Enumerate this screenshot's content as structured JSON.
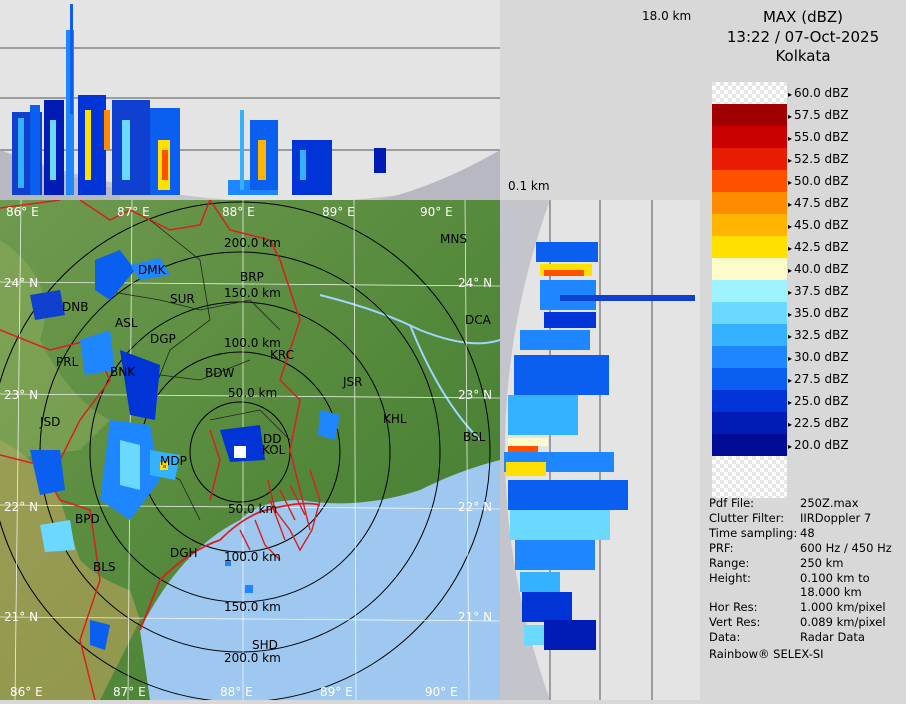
{
  "header": {
    "product": "MAX (dBZ)",
    "datetime": "13:22 / 07-Oct-2025",
    "station": "Kolkata"
  },
  "height_labels": {
    "top": "18.0 km",
    "bottom": "0.1 km"
  },
  "legend": [
    {
      "label": "60.0 dBZ",
      "color": "checker"
    },
    {
      "label": "57.5 dBZ",
      "color": "#a00000"
    },
    {
      "label": "55.0 dBZ",
      "color": "#c80000"
    },
    {
      "label": "52.5 dBZ",
      "color": "#e81c00"
    },
    {
      "label": "50.0 dBZ",
      "color": "#ff5000"
    },
    {
      "label": "47.5 dBZ",
      "color": "#ff8c00"
    },
    {
      "label": "45.0 dBZ",
      "color": "#ffb400"
    },
    {
      "label": "42.5 dBZ",
      "color": "#ffe000"
    },
    {
      "label": "40.0 dBZ",
      "color": "#fffccc"
    },
    {
      "label": "37.5 dBZ",
      "color": "#9ff2ff"
    },
    {
      "label": "35.0 dBZ",
      "color": "#6ad8ff"
    },
    {
      "label": "32.5 dBZ",
      "color": "#34b2ff"
    },
    {
      "label": "30.0 dBZ",
      "color": "#1e86ff"
    },
    {
      "label": "27.5 dBZ",
      "color": "#0a5ef0"
    },
    {
      "label": "25.0 dBZ",
      "color": "#0034d6"
    },
    {
      "label": "22.5 dBZ",
      "color": "#001cb4"
    },
    {
      "label": "20.0 dBZ",
      "color": "#000c94"
    }
  ],
  "info": [
    {
      "key": "Pdf File:",
      "value": "250Z.max"
    },
    {
      "key": "Clutter Filter:",
      "value": "IIRDoppler 7"
    },
    {
      "key": "Time sampling:",
      "value": "48"
    },
    {
      "key": "PRF:",
      "value": "600 Hz / 450 Hz"
    },
    {
      "key": "Range:",
      "value": "250 km"
    },
    {
      "key": "Height:",
      "value": "0.100 km to\n18.000 km"
    },
    {
      "key": "Hor Res:",
      "value": "1.000 km/pixel"
    },
    {
      "key": "Vert Res:",
      "value": "0.089 km/pixel"
    },
    {
      "key": "Data:",
      "value": "Radar Data"
    }
  ],
  "footer": "Rainbow® SELEX-SI",
  "map": {
    "lon_labels_top": [
      "86° E",
      "87° E",
      "88° E",
      "89° E",
      "90° E"
    ],
    "lon_labels_bottom": [
      "86° E",
      "87° E",
      "88° E",
      "89° E",
      "90° E"
    ],
    "lat_labels_left": [
      "24° N",
      "23° N",
      "22° N",
      "21° N"
    ],
    "lat_labels_right": [
      "24° N",
      "23° N",
      "22° N",
      "21° N"
    ],
    "range_labels": [
      "50.0 km",
      "100.0 km",
      "150.0 km",
      "200.0 km"
    ],
    "range_labels_south": [
      "50.0 km",
      "100.0 km",
      "150.0 km",
      "200.0 km"
    ],
    "cities": [
      {
        "code": "MNS"
      },
      {
        "code": "BRP"
      },
      {
        "code": "DMK"
      },
      {
        "code": "DNB"
      },
      {
        "code": "SUR"
      },
      {
        "code": "ASL"
      },
      {
        "code": "DGP"
      },
      {
        "code": "DCA"
      },
      {
        "code": "KRC"
      },
      {
        "code": "PRL"
      },
      {
        "code": "BNK"
      },
      {
        "code": "BDW"
      },
      {
        "code": "JSR"
      },
      {
        "code": "KHL"
      },
      {
        "code": "JSD"
      },
      {
        "code": "DD"
      },
      {
        "code": "KOL"
      },
      {
        "code": "BSL"
      },
      {
        "code": "MDP"
      },
      {
        "code": "BPD"
      },
      {
        "code": "DGH"
      },
      {
        "code": "BLS"
      },
      {
        "code": "SHD"
      }
    ]
  }
}
